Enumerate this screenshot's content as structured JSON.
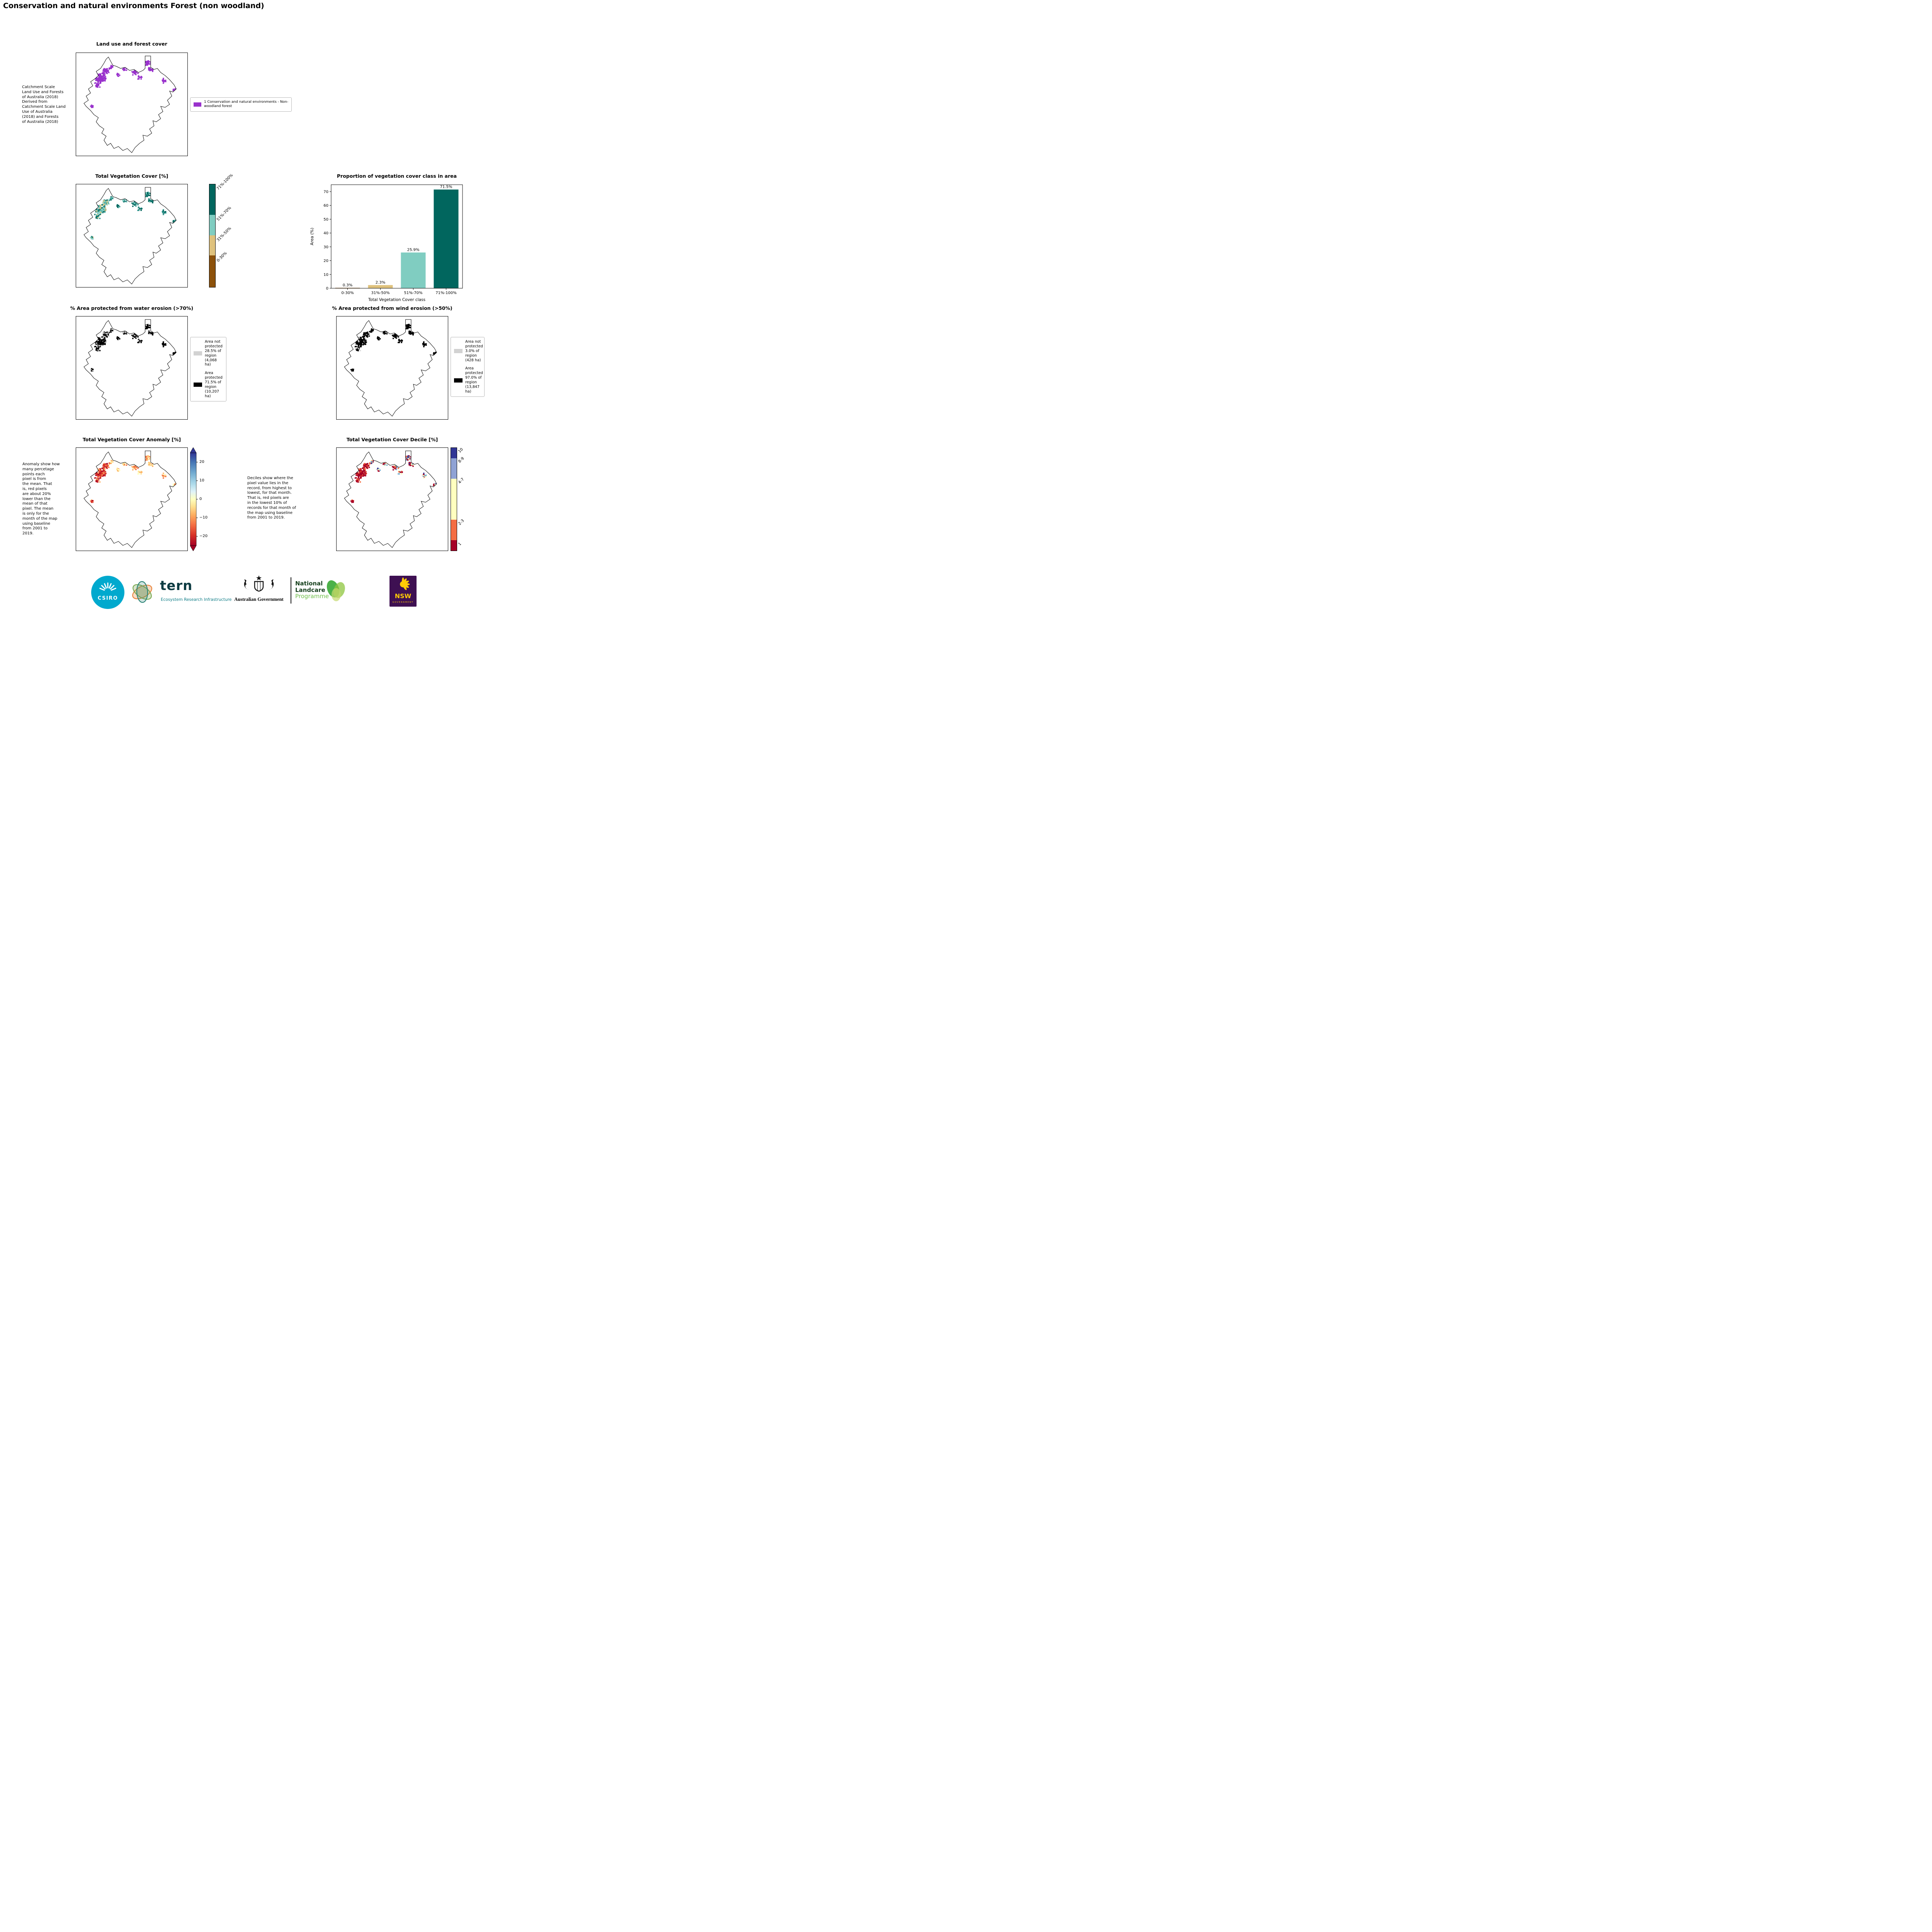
{
  "page": {
    "title": "Conservation and natural environments Forest (non woodland)"
  },
  "landuse": {
    "title": "Land use and forest cover",
    "caption": "Catchment Scale\nLand Use and Forests\nof Australia (2018)\nDerived from\nCatchment Scale Land\nUse of Australia\n(2018) and Forests\nof Australia (2018)",
    "legend_label": "1 Conservation and natural environments - Non-\nwoodland forest",
    "pixel_color": "#9932CC",
    "palette": {
      "w": [
        "#9932CC"
      ],
      "n": [
        "#9932CC"
      ],
      "e": [
        "#9932CC"
      ]
    }
  },
  "vegcover": {
    "title": "Total Vegetation Cover [%]",
    "classes": [
      {
        "label": "0-30%",
        "color": "#8c510a"
      },
      {
        "label": "31%-50%",
        "color": "#dfc27d"
      },
      {
        "label": "51%-70%",
        "color": "#80cdc1"
      },
      {
        "label": "71%-100%",
        "color": "#01665e"
      }
    ],
    "palette": {
      "w": [
        "#01665e",
        "#80cdc1",
        "#80cdc1",
        "#dfc27d",
        "#35978f"
      ],
      "n": [
        "#01665e",
        "#01665e",
        "#35978f",
        "#80cdc1"
      ],
      "e": [
        "#01665e",
        "#35978f"
      ]
    }
  },
  "chart_data": {
    "type": "bar",
    "title": "Proportion of vegetation cover class in area",
    "categories": [
      "0-30%",
      "31%-50%",
      "51%-70%",
      "71%-100%"
    ],
    "values": [
      0.3,
      2.3,
      25.9,
      71.5
    ],
    "value_labels": [
      "0.3%",
      "2.3%",
      "25.9%",
      "71.5%"
    ],
    "colors": [
      "#8c510a",
      "#dfc27d",
      "#80cdc1",
      "#01665e"
    ],
    "xlabel": "Total Vegetation Cover class",
    "ylabel": "Area (%)",
    "ylim": [
      0,
      75
    ],
    "yticks": [
      0,
      10,
      20,
      30,
      40,
      50,
      60,
      70
    ],
    "grid": false,
    "legend": null
  },
  "water": {
    "title": "% Area protected from water erosion (>70%)",
    "legend": [
      {
        "swatch": "#d2d2d2",
        "label": "Area not\nprotected\n28.5% of\nregion\n(4,068 ha)"
      },
      {
        "swatch": "#000000",
        "label": "Area\nprotected\n71.5% of\nregion\n(10,207\nha)"
      }
    ],
    "palette": {
      "w": [
        "#000000",
        "#000000",
        "#c8c8c8",
        "#000000"
      ],
      "n": [
        "#000000",
        "#000000",
        "#000000",
        "#c8c8c8"
      ],
      "e": [
        "#000000"
      ]
    }
  },
  "wind": {
    "title": "% Area protected from wind erosion (>50%)",
    "legend": [
      {
        "swatch": "#d2d2d2",
        "label": "Area not\nprotected\n3.0% of\nregion\n(428 ha)"
      },
      {
        "swatch": "#000000",
        "label": "Area\nprotected\n97.0% of\nregion\n(13,847\nha)"
      }
    ],
    "palette": {
      "w": [
        "#000000",
        "#000000",
        "#000000",
        "#000000",
        "#d9d9d9"
      ],
      "n": [
        "#000000"
      ],
      "e": [
        "#000000"
      ]
    }
  },
  "anomaly": {
    "title": "Total Vegetation Cover Anomaly [%]",
    "caption": "Anomaly show how\nmany percetage\npoints each\npixel is from\nthe mean. That\nis, red pixels\nare about 20%\nlower than the\nmean of that\npixel. The mean\nis only for the\nmonth of the map\nusing baseline\nfrom 2001 to\n2019.",
    "colorbar_ticks": [
      "20",
      "10",
      "0",
      "−10",
      "−20"
    ],
    "palette": {
      "w": [
        "#a50026",
        "#d73027",
        "#f46d43",
        "#d73027",
        "#fdae61"
      ],
      "n": [
        "#fdae61",
        "#fee090",
        "#ffffbf",
        "#f46d43",
        "#fee090"
      ],
      "e": [
        "#fee090",
        "#ffffbf",
        "#fdae61",
        "#f46d43"
      ]
    }
  },
  "decile": {
    "title": "Total Vegetation Cover Decile [%]",
    "caption": "Deciles show where the\npixel value lies in the\nrecord, from highest to\nlowest, for that month.\nThat is, red pixels are\nin the lowest 10% of\nrecords for that month of\nthe map using baseline\nfrom 2001 to 2019.",
    "classes": [
      {
        "label": "1",
        "color": "#a50026",
        "span": 1
      },
      {
        "label": "2-3",
        "color": "#f46d43",
        "span": 2
      },
      {
        "label": "4-7",
        "color": "#ffffbf",
        "span": 4
      },
      {
        "label": "8-9",
        "color": "#8fa2d4",
        "span": 2
      },
      {
        "label": "10",
        "color": "#313695",
        "span": 1
      }
    ],
    "palette": {
      "w": [
        "#a50026",
        "#a50026",
        "#a50026",
        "#d73027",
        "#f46d43"
      ],
      "n": [
        "#a50026",
        "#313695",
        "#ffffbf",
        "#74add1",
        "#f46d43",
        "#a50026"
      ],
      "e": [
        "#74add1",
        "#a50026",
        "#313695",
        "#ffffbf"
      ]
    }
  },
  "footer": {
    "csiro_label": "CSIRO",
    "csiro_color": "#00a9ce",
    "tern_label": "tern",
    "tern_sub": "Ecosystem Research Infrastructure",
    "ausgov_label": "Australian Government",
    "landcare_line1": "National",
    "landcare_line2": "Landcare",
    "landcare_line3": "Programme",
    "nsw_label": "NSW",
    "nsw_sub": "GOVERNMENT",
    "nsw_bg": "#3e1052",
    "nsw_accent": "#ffcb05"
  }
}
